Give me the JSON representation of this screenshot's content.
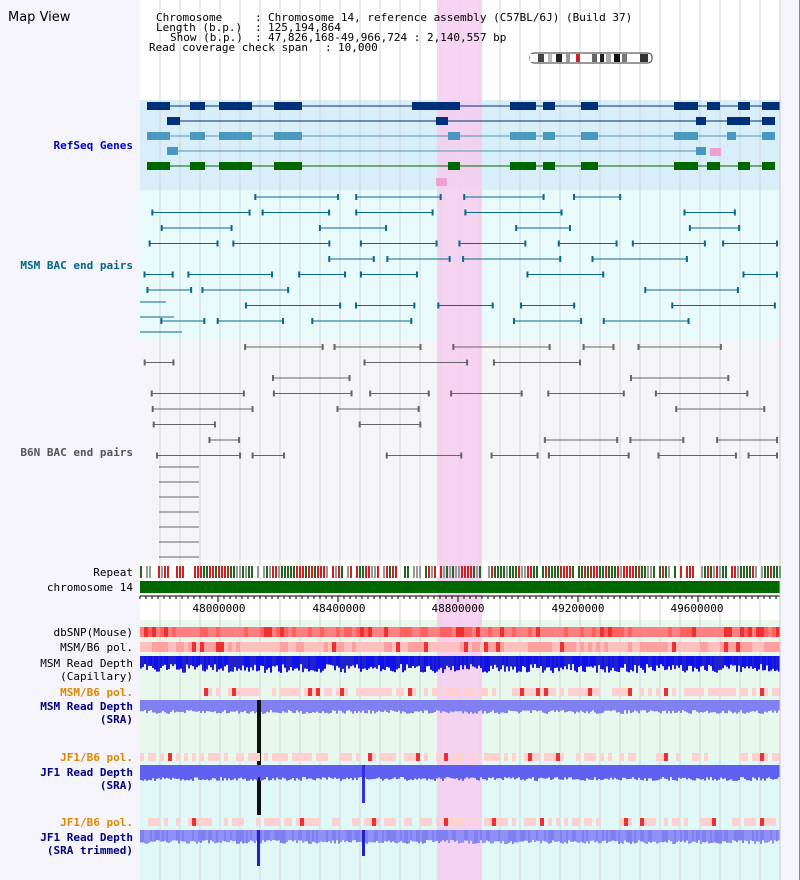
{
  "title": "Map View",
  "info": {
    "chromosome_key": "Chromosome",
    "chromosome_val": "Chromosome 14, reference assembly (C57BL/6J) (Build 37)",
    "length_key": "Length (b.p.)",
    "length_val": "125,194,864",
    "show_key": "Show (b.p.)",
    "show_val": "47,826,168-49,966,724 : 2,140,557 bp",
    "coverage_key": "Read coverage check span",
    "coverage_val": "10,000"
  },
  "tracks": {
    "refseq": "RefSeq Genes",
    "msm_bac": "MSM BAC end pairs",
    "b6n_bac": "B6N BAC end pairs",
    "repeat": "Repeat",
    "chromosome": "chromosome 14",
    "dbsnp": "dbSNP(Mouse)",
    "msm_b6_pol_1": "MSM/B6 pol.",
    "msm_read_depth_cap_1": "MSM Read Depth",
    "msm_read_depth_cap_2": "(Capillary)",
    "msm_b6_pol_2": "MSM/B6 pol.",
    "msm_read_depth_sra_1": "MSM Read Depth",
    "msm_read_depth_sra_2": "(SRA)",
    "jf1_b6_pol_1": "JF1/B6 pol.",
    "jf1_read_depth_sra_1": "JF1 Read Depth",
    "jf1_read_depth_sra_2": "(SRA)",
    "jf1_b6_pol_2": "JF1/B6 pol.",
    "jf1_read_depth_trim_1": "JF1 Read Depth",
    "jf1_read_depth_trim_2": "(SRA trimmed)"
  },
  "axis": {
    "ticks": [
      "48000000",
      "48400000",
      "48800000",
      "49200000",
      "49600000"
    ]
  },
  "colors": {
    "refseq_label": "#0000cc",
    "bac_label": "#006688",
    "b6n_label": "#555555",
    "dark_label": "#000080",
    "orange_label": "#dd8800",
    "highlight": "#f8d0f0",
    "chromosome_bar": "#006600"
  }
}
